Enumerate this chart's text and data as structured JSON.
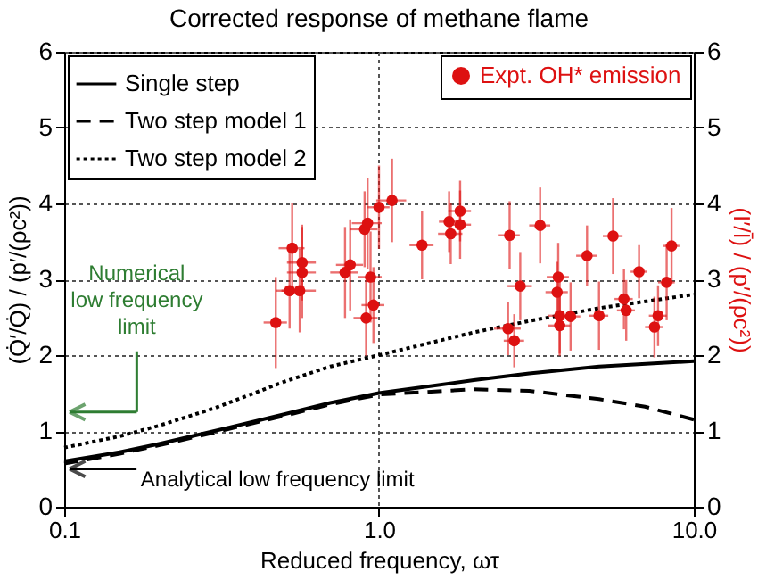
{
  "chart_data": {
    "type": "line",
    "title": "Corrected response of methane flame",
    "xlabel": "Reduced frequency, ωτ",
    "ylabel": "(Q̇′/Q̇) / (p′/(ρc²))",
    "y2label": "(I′/Ī) / (p′/(ρc²))",
    "log": "x",
    "xlim": [
      0.1,
      10
    ],
    "xticks": [
      {
        "value": 0.1,
        "label": "0.1"
      },
      {
        "value": 1,
        "label": "1.0"
      },
      {
        "value": 10,
        "label": "10.0"
      }
    ],
    "ylim": [
      0,
      6
    ],
    "yticks": [
      0,
      1,
      2,
      3,
      4,
      5,
      6
    ],
    "y2lim": [
      0,
      6
    ],
    "y2ticks": [
      0,
      1,
      2,
      3,
      4,
      5,
      6
    ],
    "grid": true,
    "legend": "top",
    "series": [
      {
        "name": "Single step",
        "color": "#000000",
        "line_style": "solid",
        "x": [
          0.1,
          0.15,
          0.2,
          0.3,
          0.5,
          0.7,
          1,
          2,
          3,
          5,
          10
        ],
        "values": [
          0.6,
          0.72,
          0.83,
          1.0,
          1.22,
          1.37,
          1.5,
          1.67,
          1.76,
          1.85,
          1.92
        ]
      },
      {
        "name": "Two step model 1",
        "color": "#000000",
        "line_style": "dashed",
        "x": [
          0.1,
          0.15,
          0.2,
          0.3,
          0.5,
          0.7,
          1,
          2,
          3,
          5,
          7,
          10
        ],
        "values": [
          0.57,
          0.7,
          0.81,
          0.98,
          1.2,
          1.35,
          1.48,
          1.55,
          1.53,
          1.42,
          1.32,
          1.15
        ]
      },
      {
        "name": "Two step model 2",
        "color": "#000000",
        "line_style": "dotted",
        "x": [
          0.1,
          0.15,
          0.2,
          0.3,
          0.5,
          0.7,
          1,
          2,
          3,
          5,
          10
        ],
        "values": [
          0.78,
          0.93,
          1.07,
          1.3,
          1.65,
          1.85,
          2.0,
          2.3,
          2.45,
          2.62,
          2.8
        ]
      },
      {
        "name": "Expt. OH* emission",
        "type": "scatter",
        "marker": "circle",
        "axis": "y2",
        "color": "#dd1111",
        "x": [
          0.47,
          0.53,
          0.52,
          0.57,
          0.57,
          0.56,
          0.78,
          0.81,
          0.9,
          0.92,
          0.94,
          0.96,
          0.91,
          1.0,
          1.1,
          1.37,
          1.67,
          1.81,
          1.69,
          1.81,
          2.6,
          3.25,
          4.58,
          5.54,
          8.5,
          6.7,
          3.71,
          2.81,
          8.2,
          6.0,
          2.57,
          2.69,
          3.75,
          4.06,
          3.75,
          5.0,
          6.1,
          7.5,
          7.7,
          3.68
        ],
        "values": [
          2.43,
          3.41,
          2.85,
          3.22,
          3.09,
          2.85,
          3.09,
          3.19,
          3.66,
          3.74,
          3.03,
          2.66,
          2.49,
          3.95,
          4.04,
          3.45,
          3.76,
          3.9,
          3.6,
          3.72,
          3.58,
          3.71,
          3.31,
          3.57,
          3.44,
          3.1,
          3.03,
          2.91,
          2.96,
          2.74,
          2.35,
          2.19,
          2.52,
          2.51,
          2.39,
          2.52,
          2.59,
          2.37,
          2.52,
          2.83
        ],
        "errors": [
          0.6,
          0.6,
          0.5,
          0.5,
          0.6,
          0.55,
          0.6,
          0.6,
          0.5,
          0.6,
          0.6,
          0.5,
          0.5,
          0.55,
          0.55,
          0.45,
          0.4,
          0.4,
          0.4,
          0.45,
          0.45,
          0.5,
          0.4,
          0.5,
          0.5,
          0.35,
          0.45,
          0.45,
          0.5,
          0.4,
          0.35,
          0.35,
          0.5,
          0.45,
          0.4,
          0.45,
          0.4,
          0.4,
          0.4,
          0.4
        ],
        "xerrors": [
          0.04,
          0.05,
          0.05,
          0.06,
          0.06,
          0.07,
          0.08,
          0.08,
          0.09,
          0.1,
          0.08,
          0.08,
          0.08,
          0.08,
          0.12,
          0.12,
          0.12,
          0.15,
          0.15,
          0.15,
          0.2,
          0.25,
          0.35,
          0.4,
          0.5,
          0.4,
          0.3,
          0.25,
          0.5,
          0.4,
          0.25,
          0.2,
          0.3,
          0.3,
          0.3,
          0.35,
          0.4,
          0.5,
          0.5,
          0.3
        ]
      }
    ],
    "annotations": [
      "Numerical low frequency limit",
      "Analytical low frequency limit"
    ]
  }
}
